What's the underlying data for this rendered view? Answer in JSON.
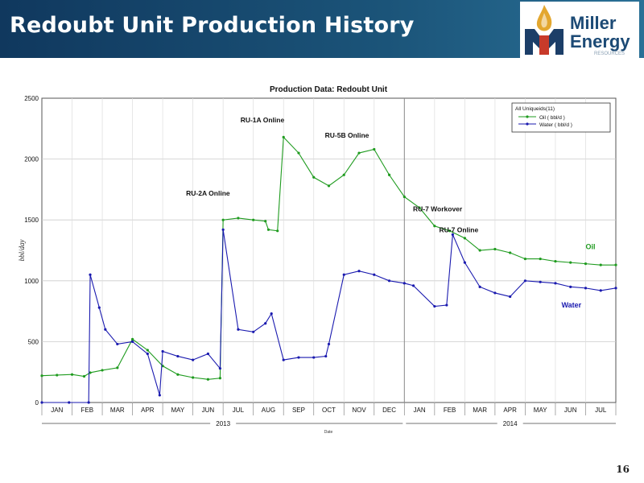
{
  "header": {
    "title": "Redoubt Unit Production History",
    "logo_line1": "Miller",
    "logo_line2": "Energy",
    "logo_small": "RESOURCES"
  },
  "page_number": "16",
  "colors": {
    "oil": "#1f9b1f",
    "water": "#1a1aaf",
    "header": "#12405f"
  },
  "chart_data": {
    "type": "line",
    "title": "Production Data: Redoubt Unit",
    "xlabel": "Date",
    "ylabel": "bbl/day",
    "ylim": [
      0,
      2500
    ],
    "yticks": [
      "0",
      "500",
      "1000",
      "1500",
      "2000",
      "2500"
    ],
    "months": [
      "JAN",
      "FEB",
      "MAR",
      "APR",
      "MAY",
      "JUN",
      "JUL",
      "AUG",
      "SEP",
      "OCT",
      "NOV",
      "DEC",
      "JAN",
      "FEB",
      "MAR",
      "APR",
      "MAY",
      "JUN",
      "JUL"
    ],
    "years": [
      "2013",
      "2014"
    ],
    "grid": true,
    "legend": {
      "title": "All Uniqueids(11)",
      "placement": "top-right",
      "entries": [
        "Oil ( bbl/d )",
        "Water ( bbl/d )"
      ]
    },
    "series": [
      {
        "name": "Oil ( bbl/d )",
        "label": "Oil",
        "color": "#1f9b1f",
        "x": [
          0,
          0.5,
          1,
          1.4,
          1.6,
          2,
          2.5,
          3,
          3.5,
          4,
          4.5,
          5,
          5.5,
          5.9,
          6,
          6.5,
          7,
          7.4,
          7.5,
          7.8,
          8,
          8.5,
          9,
          9.5,
          10,
          10.5,
          11,
          11.5,
          12,
          12.5,
          13,
          13.5,
          14,
          14.5,
          15,
          15.5,
          16,
          16.5,
          17,
          17.5,
          18,
          18.5,
          19
        ],
        "y": [
          220,
          225,
          230,
          215,
          245,
          265,
          285,
          520,
          430,
          300,
          230,
          205,
          190,
          200,
          1500,
          1515,
          1500,
          1490,
          1420,
          1410,
          2180,
          2050,
          1850,
          1780,
          1870,
          2050,
          2080,
          1870,
          1690,
          1600,
          1450,
          1410,
          1350,
          1250,
          1260,
          1230,
          1180,
          1180,
          1160,
          1150,
          1140,
          1130,
          1130
        ]
      },
      {
        "name": "Water ( bbl/d )",
        "label": "Water",
        "color": "#1a1aaf",
        "x": [
          0,
          0.9,
          1.55,
          1.6,
          1.9,
          2.1,
          2.5,
          3,
          3.5,
          3.9,
          4,
          4.5,
          5,
          5.5,
          5.9,
          6,
          6.5,
          7,
          7.4,
          7.6,
          8,
          8.5,
          9,
          9.4,
          9.5,
          10,
          10.5,
          11,
          11.5,
          12,
          12.3,
          13,
          13.4,
          13.6,
          14,
          14.5,
          15,
          15.5,
          16,
          16.5,
          17,
          17.5,
          18,
          18.5,
          19
        ],
        "y": [
          0,
          0,
          0,
          1050,
          780,
          600,
          480,
          500,
          400,
          60,
          420,
          380,
          350,
          400,
          280,
          1420,
          600,
          580,
          650,
          730,
          350,
          370,
          370,
          380,
          480,
          1050,
          1080,
          1050,
          1000,
          980,
          960,
          790,
          800,
          1380,
          1150,
          950,
          900,
          870,
          1000,
          990,
          980,
          950,
          940,
          920,
          940
        ]
      }
    ],
    "annotations": [
      {
        "text": "RU-2A Online",
        "x": 5.5,
        "y": 1700
      },
      {
        "text": "RU-1A Online",
        "x": 7.3,
        "y": 2300
      },
      {
        "text": "RU-5B Online",
        "x": 10.1,
        "y": 2175
      },
      {
        "text": "RU-7 Workover",
        "x": 13.1,
        "y": 1570
      },
      {
        "text": "RU-7 Online",
        "x": 13.8,
        "y": 1400
      }
    ]
  }
}
